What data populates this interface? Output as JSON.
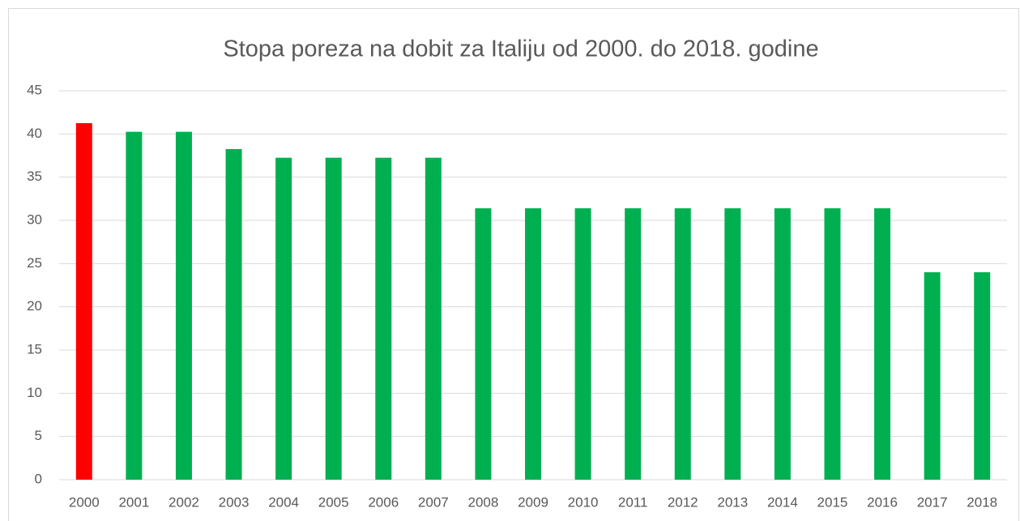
{
  "chart_data": {
    "type": "bar",
    "title": "Stopa poreza na dobit za Italiju od 2000. do 2018. godine",
    "categories": [
      "2000",
      "2001",
      "2002",
      "2003",
      "2004",
      "2005",
      "2006",
      "2007",
      "2008",
      "2009",
      "2010",
      "2011",
      "2012",
      "2013",
      "2014",
      "2015",
      "2016",
      "2017",
      "2018"
    ],
    "values": [
      41.25,
      40.25,
      40.25,
      38.25,
      37.25,
      37.25,
      37.25,
      37.25,
      31.4,
      31.4,
      31.4,
      31.4,
      31.4,
      31.4,
      31.4,
      31.4,
      31.4,
      24,
      24
    ],
    "colors": [
      "#ff0000",
      "#00b050",
      "#00b050",
      "#00b050",
      "#00b050",
      "#00b050",
      "#00b050",
      "#00b050",
      "#00b050",
      "#00b050",
      "#00b050",
      "#00b050",
      "#00b050",
      "#00b050",
      "#00b050",
      "#00b050",
      "#00b050",
      "#00b050",
      "#00b050"
    ],
    "ylim": [
      0,
      45
    ],
    "yticks": [
      0,
      5,
      10,
      15,
      20,
      25,
      30,
      35,
      40,
      45
    ],
    "grid": true
  }
}
